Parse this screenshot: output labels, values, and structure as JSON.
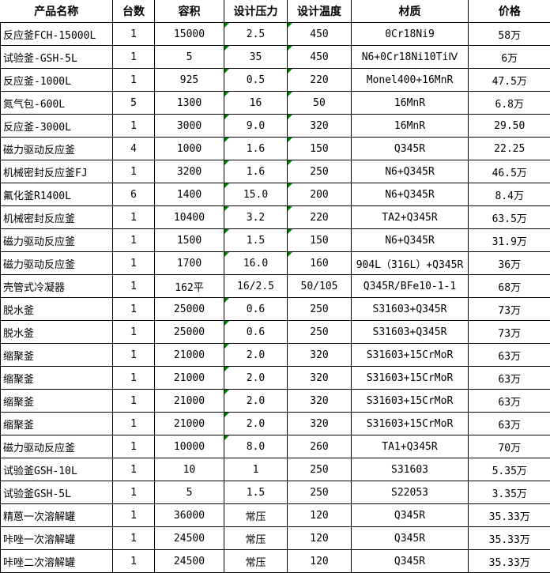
{
  "colors": {
    "indicator_green": "#008000",
    "grid": "#000000",
    "background": "#ffffff",
    "text": "#000000"
  },
  "icons": {
    "cell_corner_indicator": "number-stored-as-text-triangle"
  },
  "columns": [
    {
      "key": "name",
      "label": "产品名称"
    },
    {
      "key": "qty",
      "label": "台数"
    },
    {
      "key": "volume",
      "label": "容积"
    },
    {
      "key": "pressure",
      "label": "设计压力"
    },
    {
      "key": "temp",
      "label": "设计温度"
    },
    {
      "key": "material",
      "label": "材质"
    },
    {
      "key": "price",
      "label": "价格"
    }
  ],
  "rows": [
    {
      "name": "反应釜FCH-15000L",
      "qty": "1",
      "volume": "15000",
      "pressure": "2.5",
      "temp": "450",
      "material": "0Cr18Ni9",
      "price": "58万",
      "pressure_flag": true,
      "temp_flag": true
    },
    {
      "name": "试验釜-GSH-5L",
      "qty": "1",
      "volume": "5",
      "pressure": "35",
      "temp": "450",
      "material": "N6+0Cr18Ni10TiⅣ",
      "price": "6万",
      "pressure_flag": true,
      "temp_flag": true
    },
    {
      "name": "反应釜-1000L",
      "qty": "1",
      "volume": "925",
      "pressure": "0.5",
      "temp": "220",
      "material": "Monel400+16MnR",
      "price": "47.5万",
      "pressure_flag": true,
      "temp_flag": true
    },
    {
      "name": "氮气包-600L",
      "qty": "5",
      "volume": "1300",
      "pressure": "16",
      "temp": "50",
      "material": "16MnR",
      "price": "6.8万",
      "pressure_flag": true,
      "temp_flag": true
    },
    {
      "name": "反应釜-3000L",
      "qty": "1",
      "volume": "3000",
      "pressure": "9.0",
      "temp": "320",
      "material": "16MnR",
      "price": "29.50",
      "pressure_flag": true,
      "temp_flag": true
    },
    {
      "name": "磁力驱动反应釜",
      "qty": "4",
      "volume": "1000",
      "pressure": "1.6",
      "temp": "150",
      "material": "Q345R",
      "price": "22.25",
      "pressure_flag": true,
      "temp_flag": true
    },
    {
      "name": "机械密封反应釜FJ",
      "qty": "1",
      "volume": "3200",
      "pressure": "1.6",
      "temp": "250",
      "material": "N6+Q345R",
      "price": "46.5万",
      "pressure_flag": true,
      "temp_flag": true
    },
    {
      "name": "氟化釜R1400L",
      "qty": "6",
      "volume": "1400",
      "pressure": "15.0",
      "temp": "200",
      "material": "N6+Q345R",
      "price": "8.4万",
      "pressure_flag": true,
      "temp_flag": true
    },
    {
      "name": "机械密封反应釜",
      "qty": "1",
      "volume": "10400",
      "pressure": "3.2",
      "temp": "220",
      "material": "TA2+Q345R",
      "price": "63.5万",
      "pressure_flag": true,
      "temp_flag": true
    },
    {
      "name": "磁力驱动反应釜",
      "qty": "1",
      "volume": "1500",
      "pressure": "1.5",
      "temp": "150",
      "material": "N6+Q345R",
      "price": "31.9万",
      "pressure_flag": true,
      "temp_flag": true
    },
    {
      "name": "磁力驱动反应釜",
      "qty": "1",
      "volume": "1700",
      "pressure": "16.0",
      "temp": "160",
      "material": "904L（316L）+Q345R",
      "price": "36万",
      "pressure_flag": true,
      "temp_flag": true
    },
    {
      "name": "壳管式冷凝器",
      "qty": "1",
      "volume": "162平",
      "pressure": "16/2.5",
      "temp": "50/105",
      "material": "Q345R/BFe10-1-1",
      "price": "68万",
      "pressure_flag": false,
      "temp_flag": false
    },
    {
      "name": "脱水釜",
      "qty": "1",
      "volume": "25000",
      "pressure": "0.6",
      "temp": "250",
      "material": "S31603+Q345R",
      "price": "73万",
      "pressure_flag": true,
      "temp_flag": false
    },
    {
      "name": "脱水釜",
      "qty": "1",
      "volume": "25000",
      "pressure": "0.6",
      "temp": "250",
      "material": "S31603+Q345R",
      "price": "73万",
      "pressure_flag": true,
      "temp_flag": false
    },
    {
      "name": "缩聚釜",
      "qty": "1",
      "volume": "21000",
      "pressure": "2.0",
      "temp": "320",
      "material": "S31603+15CrMoR",
      "price": "63万",
      "pressure_flag": true,
      "temp_flag": false
    },
    {
      "name": "缩聚釜",
      "qty": "1",
      "volume": "21000",
      "pressure": "2.0",
      "temp": "320",
      "material": "S31603+15CrMoR",
      "price": "63万",
      "pressure_flag": true,
      "temp_flag": false
    },
    {
      "name": "缩聚釜",
      "qty": "1",
      "volume": "21000",
      "pressure": "2.0",
      "temp": "320",
      "material": "S31603+15CrMoR",
      "price": "63万",
      "pressure_flag": true,
      "temp_flag": false
    },
    {
      "name": "缩聚釜",
      "qty": "1",
      "volume": "21000",
      "pressure": "2.0",
      "temp": "320",
      "material": "S31603+15CrMoR",
      "price": "63万",
      "pressure_flag": true,
      "temp_flag": false
    },
    {
      "name": "磁力驱动反应釜",
      "qty": "1",
      "volume": "10000",
      "pressure": "8.0",
      "temp": "260",
      "material": "TA1+Q345R",
      "price": "70万",
      "pressure_flag": true,
      "temp_flag": false
    },
    {
      "name": "试验釜GSH-10L",
      "qty": "1",
      "volume": "10",
      "pressure": "1",
      "temp": "250",
      "material": "S31603",
      "price": "5.35万",
      "pressure_flag": false,
      "temp_flag": false
    },
    {
      "name": "试验釜GSH-5L",
      "qty": "1",
      "volume": "5",
      "pressure": "1.5",
      "temp": "250",
      "material": "S22053",
      "price": "3.35万",
      "pressure_flag": false,
      "temp_flag": false
    },
    {
      "name": "精蒽一次溶解罐",
      "qty": "1",
      "volume": "36000",
      "pressure": "常压",
      "temp": "120",
      "material": "Q345R",
      "price": "35.33万",
      "pressure_flag": false,
      "temp_flag": false
    },
    {
      "name": "咔唑一次溶解罐",
      "qty": "1",
      "volume": "24500",
      "pressure": "常压",
      "temp": "120",
      "material": "Q345R",
      "price": "35.33万",
      "pressure_flag": false,
      "temp_flag": false
    },
    {
      "name": "咔唑二次溶解罐",
      "qty": "1",
      "volume": "24500",
      "pressure": "常压",
      "temp": "120",
      "material": "Q345R",
      "price": "35.33万",
      "pressure_flag": false,
      "temp_flag": false
    }
  ]
}
